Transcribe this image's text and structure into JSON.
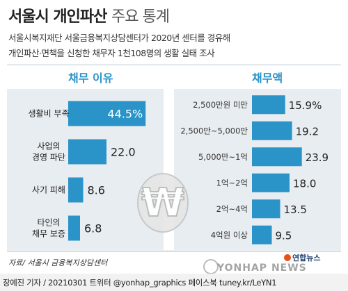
{
  "header": {
    "title_main": "서울시 개인파산",
    "title_light": "주요 통계",
    "subtitle_line1": "서울시복지재단 서울금융복지상담센터가 2020년 센터를 경유해",
    "subtitle_line2": "개인파산·면책을 신청한 채무자 1천108명의 생활 실태 조사"
  },
  "chart_data": [
    {
      "type": "bar",
      "orientation": "horizontal",
      "title": "채무 이유",
      "categories": [
        "생활비 부족",
        "사업의\n경영 파탄",
        "사기 피해",
        "타인의\n채무 보증"
      ],
      "values": [
        44.5,
        22.0,
        8.6,
        6.8
      ],
      "value_labels": [
        "44.5%",
        "22.0",
        "8.6",
        "6.8"
      ],
      "xlim": [
        0,
        50
      ],
      "grid": false,
      "colors": {
        "bar": "#2a93c8",
        "highlight": "#2a93c8"
      }
    },
    {
      "type": "bar",
      "orientation": "horizontal",
      "title": "채무액",
      "categories": [
        "2,500만원 미만",
        "2,500만~5,000만",
        "5,000만~1억",
        "1억~2억",
        "2억~4억",
        "4억원 이상"
      ],
      "values": [
        15.9,
        19.2,
        23.9,
        18.0,
        13.5,
        9.5
      ],
      "value_labels": [
        "15.9%",
        "19.2",
        "23.9",
        "18.0",
        "13.5",
        "9.5"
      ],
      "xlim": [
        0,
        25
      ],
      "grid": false,
      "colors": {
        "bar": "#2a93c8"
      }
    }
  ],
  "footer": {
    "source": "자료/ 서울시 금융복지상담센터",
    "credit": "장예진 기자 / 20210301 트위터 @yonhap_graphics  페이스북 tuney.kr/LeYN1",
    "logo": "연합뉴스",
    "watermark": "YONHAP NEWS"
  },
  "colors": {
    "accent": "#2a93c8",
    "panel_bg": "#e8edf1",
    "won_symbol": "#d9d9d9"
  }
}
